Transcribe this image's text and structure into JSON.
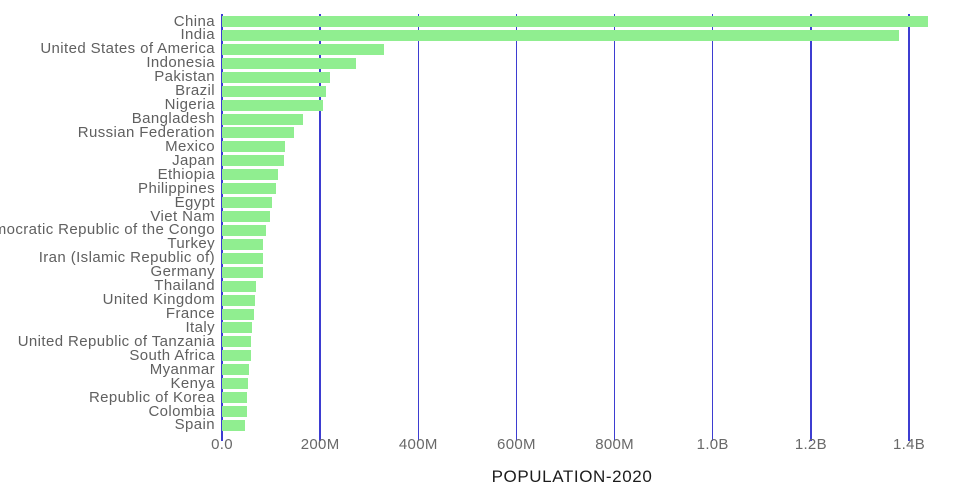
{
  "chart_data": {
    "type": "bar",
    "orientation": "horizontal",
    "title": "",
    "xlabel": "POPULATION-2020",
    "ylabel": "",
    "legend_position": "none",
    "grid": true,
    "categories": [
      "China",
      "India",
      "United States of America",
      "Indonesia",
      "Pakistan",
      "Brazil",
      "Nigeria",
      "Bangladesh",
      "Russian Federation",
      "Mexico",
      "Japan",
      "Ethiopia",
      "Philippines",
      "Egypt",
      "Viet Nam",
      "Democratic Republic of the Congo",
      "Turkey",
      "Iran (Islamic Republic of)",
      "Germany",
      "Thailand",
      "United Kingdom",
      "France",
      "Italy",
      "United Republic of Tanzania",
      "South Africa",
      "Myanmar",
      "Kenya",
      "Republic of Korea",
      "Colombia",
      "Spain"
    ],
    "values_millions": [
      1439.3,
      1380.0,
      331.0,
      273.5,
      220.9,
      212.6,
      206.1,
      164.7,
      145.9,
      128.9,
      126.5,
      115.0,
      109.6,
      102.3,
      97.3,
      89.6,
      84.3,
      84.0,
      83.8,
      69.8,
      67.9,
      65.3,
      60.5,
      59.7,
      59.3,
      54.4,
      53.8,
      51.3,
      50.9,
      46.8
    ],
    "x_tick_labels": [
      "0.0",
      "200M",
      "400M",
      "600M",
      "800M",
      "1.0B",
      "1.2B",
      "1.4B"
    ],
    "x_tick_values_millions": [
      0,
      200,
      400,
      600,
      800,
      1000,
      1200,
      1400
    ],
    "xlim_millions": [
      0,
      1488
    ],
    "colors": {
      "bar_fill": "#90ee90",
      "gridline": "#3d3dd1",
      "category_label": "#606060",
      "tick_label": "#696969",
      "axis_label": "#1c1c1c",
      "background": "#ffffff"
    }
  }
}
